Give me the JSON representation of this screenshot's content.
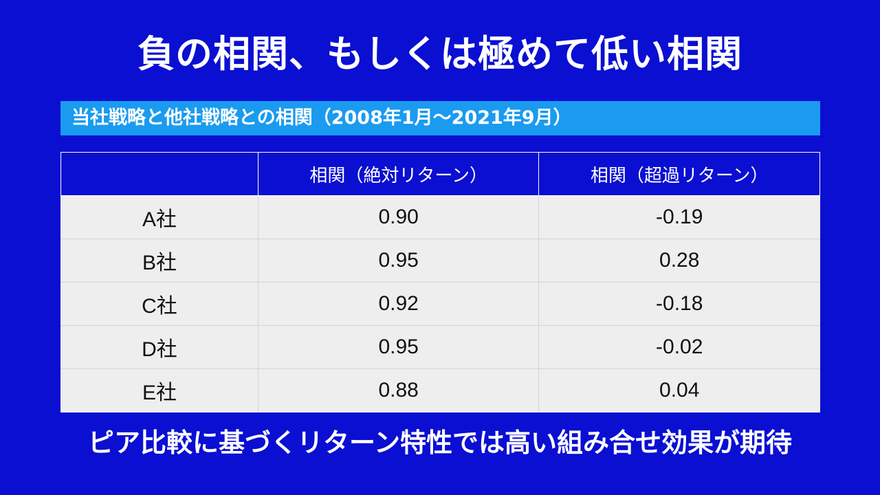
{
  "title": "負の相関、もしくは極めて低い相関",
  "subtitle": "当社戦略と他社戦略との相関（2008年1月～2021年9月）",
  "table": {
    "headers": [
      "",
      "相関（絶対リターン）",
      "相関（超過リターン）"
    ],
    "rows": [
      {
        "company": "A社",
        "abs": "0.90",
        "excess": "-0.19"
      },
      {
        "company": "B社",
        "abs": "0.95",
        "excess": "0.28"
      },
      {
        "company": "C社",
        "abs": "0.92",
        "excess": "-0.18"
      },
      {
        "company": "D社",
        "abs": "0.95",
        "excess": "-0.02"
      },
      {
        "company": "E社",
        "abs": "0.88",
        "excess": "0.04"
      }
    ]
  },
  "footer": "ピア比較に基づくリターン特性では高い組み合せ効果が期待",
  "colors": {
    "background": "#0a0fd2",
    "subtitle_bar": "#1a9bf0",
    "row_background": "#eeeeee"
  }
}
